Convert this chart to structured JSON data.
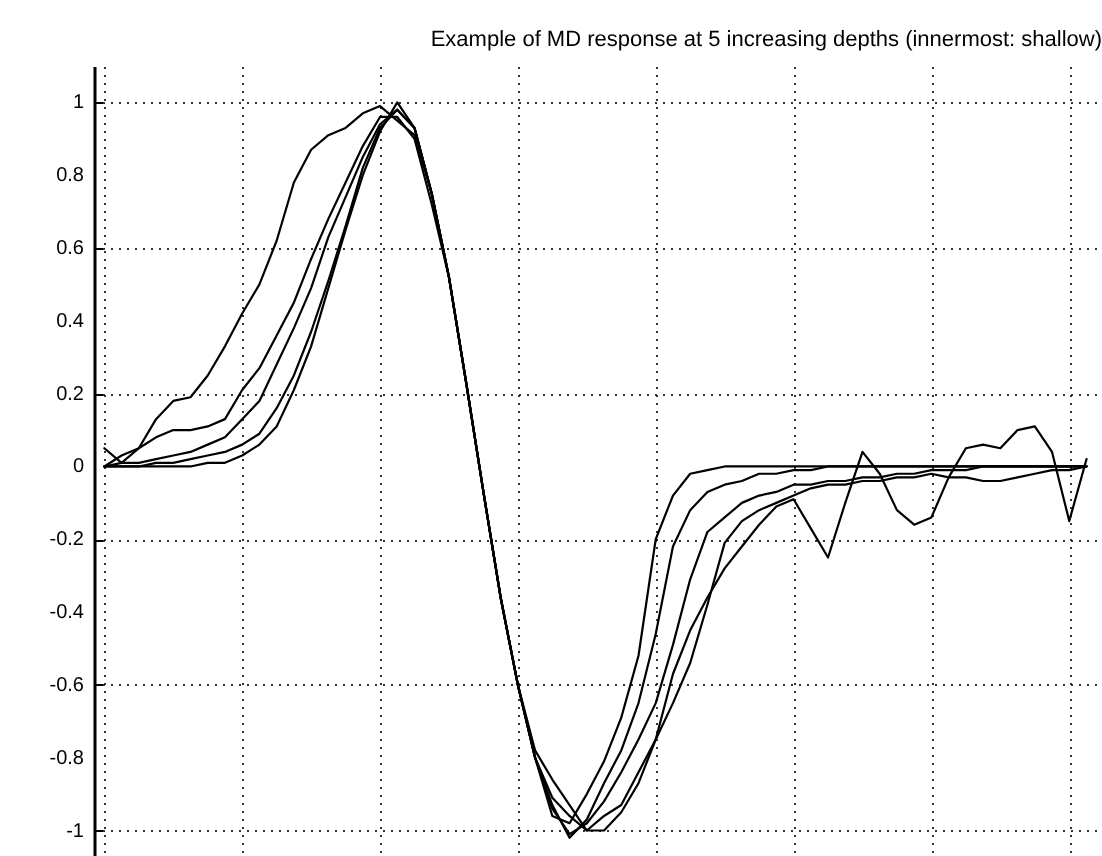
{
  "chart_data": {
    "type": "line",
    "title": "Example of MD response at 5 increasing depths (innermost: shallow)",
    "categories": [
      null,
      null,
      null,
      null,
      null,
      null,
      null,
      null,
      null,
      null,
      null,
      null,
      null,
      null,
      null,
      null,
      null,
      null,
      null,
      null,
      null,
      null,
      null,
      null,
      null,
      null,
      null,
      null,
      null,
      null,
      null,
      null,
      null,
      null,
      null,
      null,
      null,
      null,
      null,
      null,
      null,
      null,
      null,
      null,
      null,
      null,
      null,
      null,
      null,
      null,
      null,
      null,
      null,
      null,
      null,
      null,
      null,
      null
    ],
    "ylim": [
      -1.07,
      1.1
    ],
    "yticks": [
      -1,
      -0.8,
      -0.6,
      -0.4,
      -0.2,
      0,
      0.2,
      0.4,
      0.6,
      0.8,
      1
    ],
    "tick_labels": "y",
    "grid": true,
    "marker": "none",
    "line_style": "solid",
    "series": [
      {
        "color": "#000000",
        "values": [
          0,
          0,
          0,
          0,
          0,
          0,
          0.01,
          0.01,
          0.03,
          0.06,
          0.11,
          0.21,
          0.33,
          0.49,
          0.65,
          0.8,
          0.92,
          1.0,
          0.93,
          0.75,
          0.52,
          0.23,
          -0.07,
          -0.36,
          -0.6,
          -0.8,
          -0.96,
          -0.98,
          -0.9,
          -0.81,
          -0.69,
          -0.52,
          -0.2,
          -0.08,
          -0.02,
          -0.01,
          0,
          0,
          0,
          0,
          0,
          0,
          0,
          0,
          0,
          0,
          0,
          0,
          0,
          0,
          0,
          0,
          0,
          0,
          0,
          0,
          0,
          0
        ]
      },
      {
        "color": "#000000",
        "values": [
          0,
          0,
          0,
          0.01,
          0.01,
          0.02,
          0.03,
          0.04,
          0.06,
          0.09,
          0.16,
          0.25,
          0.37,
          0.51,
          0.66,
          0.82,
          0.93,
          0.98,
          0.93,
          0.75,
          0.52,
          0.23,
          -0.07,
          -0.36,
          -0.6,
          -0.8,
          -0.93,
          -1.02,
          -0.97,
          -0.87,
          -0.78,
          -0.65,
          -0.46,
          -0.22,
          -0.12,
          -0.07,
          -0.05,
          -0.04,
          -0.02,
          -0.02,
          -0.01,
          -0.01,
          0,
          0,
          0,
          0,
          0,
          0,
          0,
          0,
          0,
          0,
          0,
          0,
          0,
          0,
          0,
          0
        ]
      },
      {
        "color": "#000000",
        "values": [
          0,
          0.01,
          0.01,
          0.02,
          0.03,
          0.04,
          0.06,
          0.08,
          0.13,
          0.18,
          0.28,
          0.38,
          0.49,
          0.63,
          0.74,
          0.85,
          0.94,
          0.98,
          0.93,
          0.75,
          0.52,
          0.23,
          -0.07,
          -0.36,
          -0.6,
          -0.8,
          -0.94,
          -1.01,
          -0.98,
          -0.92,
          -0.84,
          -0.75,
          -0.65,
          -0.49,
          -0.31,
          -0.18,
          -0.14,
          -0.1,
          -0.08,
          -0.07,
          -0.05,
          -0.05,
          -0.04,
          -0.04,
          -0.03,
          -0.03,
          -0.02,
          -0.02,
          -0.01,
          -0.01,
          -0.01,
          0,
          0,
          0,
          0,
          0,
          0,
          0
        ]
      },
      {
        "color": "#000000",
        "values": [
          0,
          0.03,
          0.05,
          0.08,
          0.1,
          0.1,
          0.11,
          0.13,
          0.21,
          0.27,
          0.36,
          0.45,
          0.57,
          0.68,
          0.78,
          0.88,
          0.96,
          0.96,
          0.9,
          0.72,
          0.52,
          0.23,
          -0.07,
          -0.36,
          -0.6,
          -0.8,
          -0.91,
          -0.96,
          -1.0,
          -0.96,
          -0.93,
          -0.84,
          -0.75,
          -0.65,
          -0.54,
          -0.38,
          -0.21,
          -0.15,
          -0.12,
          -0.1,
          -0.08,
          -0.06,
          -0.05,
          -0.05,
          -0.04,
          -0.04,
          -0.03,
          -0.03,
          -0.02,
          -0.03,
          -0.03,
          -0.04,
          -0.04,
          -0.03,
          -0.02,
          -0.01,
          -0.01,
          0
        ]
      },
      {
        "color": "#000000",
        "values": [
          0.05,
          0.01,
          0.05,
          0.13,
          0.18,
          0.19,
          0.25,
          0.33,
          0.42,
          0.5,
          0.62,
          0.78,
          0.87,
          0.91,
          0.93,
          0.97,
          0.99,
          0.95,
          0.91,
          0.75,
          0.52,
          0.23,
          -0.07,
          -0.36,
          -0.6,
          -0.78,
          -0.86,
          -0.93,
          -1.0,
          -1.0,
          -0.95,
          -0.87,
          -0.75,
          -0.57,
          -0.45,
          -0.36,
          -0.28,
          -0.22,
          -0.16,
          -0.11,
          -0.09,
          -0.17,
          -0.25,
          -0.1,
          0.04,
          -0.02,
          -0.12,
          -0.16,
          -0.14,
          -0.03,
          0.05,
          0.06,
          0.05,
          0.1,
          0.11,
          0.04,
          -0.15,
          0.02
        ]
      }
    ]
  }
}
